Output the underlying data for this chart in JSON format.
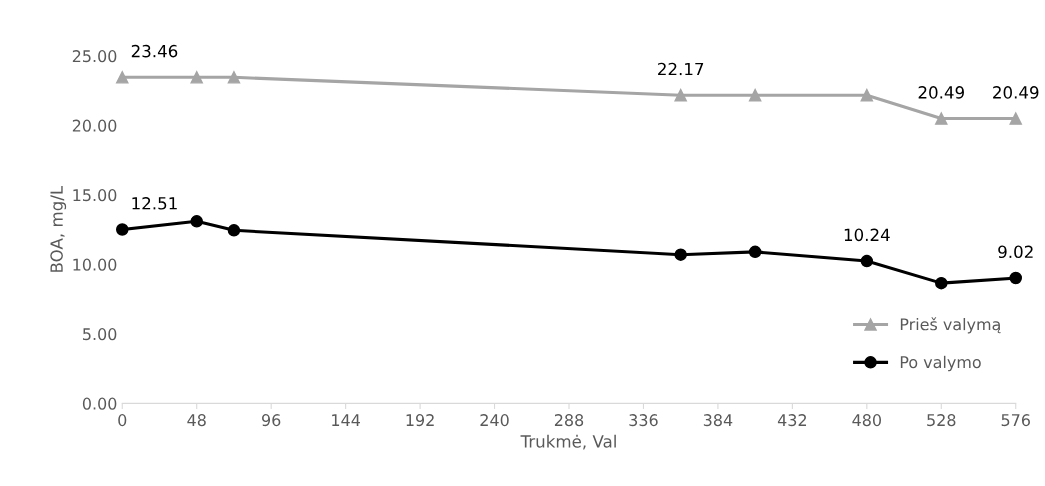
{
  "chart_data": {
    "type": "line",
    "xlabel": "Trukmė, Val",
    "ylabel": "BOA, mg/L",
    "x": [
      0,
      48,
      72,
      360,
      408,
      480,
      528,
      576
    ],
    "series": [
      {
        "name": "Prieš valymą",
        "color": "#a5a5a5",
        "marker": "triangle",
        "values": [
          23.46,
          23.46,
          23.46,
          22.17,
          22.17,
          22.17,
          20.49,
          20.49
        ],
        "value_labels": [
          "23.46",
          null,
          null,
          "22.17",
          null,
          null,
          "20.49",
          "20.49"
        ]
      },
      {
        "name": "Po valymo",
        "color": "#000000",
        "marker": "circle",
        "values": [
          12.51,
          13.1,
          12.45,
          10.7,
          10.9,
          10.24,
          8.65,
          9.02
        ],
        "value_labels": [
          "12.51",
          null,
          null,
          null,
          null,
          "10.24",
          null,
          "9.02"
        ]
      }
    ],
    "xlim": [
      0,
      576
    ],
    "xticks": [
      0,
      48,
      96,
      144,
      192,
      240,
      288,
      336,
      384,
      432,
      480,
      528,
      576
    ],
    "ylim": [
      0,
      25
    ],
    "yticks": [
      {
        "value": 0,
        "label": "0.00"
      },
      {
        "value": 5,
        "label": "5.00"
      },
      {
        "value": 10,
        "label": "10.00"
      },
      {
        "value": 15,
        "label": "15.00"
      },
      {
        "value": 20,
        "label": "20.00"
      },
      {
        "value": 25,
        "label": "25.00"
      }
    ],
    "grid": false,
    "legend": "right",
    "line_style": "solid"
  }
}
